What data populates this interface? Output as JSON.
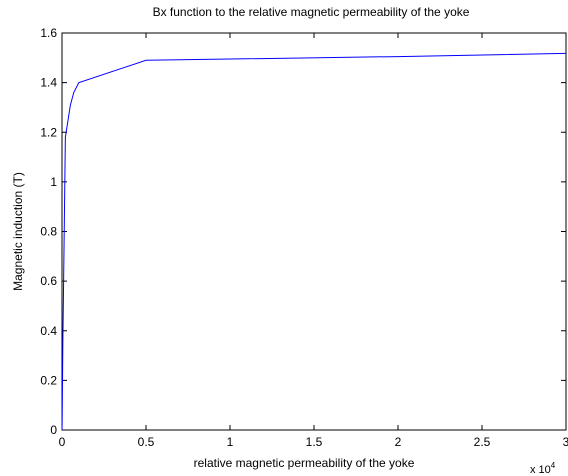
{
  "chart_data": {
    "type": "line",
    "title": "Bx function to the relative magnetic permeability of the yoke",
    "xlabel": "relative magnetic permeability of the yoke",
    "ylabel": "Magnetic induction (T)",
    "x_multiplier_label": "x 10",
    "x_multiplier_exponent": "4",
    "xlim": [
      0,
      30000
    ],
    "ylim": [
      0,
      1.6
    ],
    "x_ticks": [
      0,
      5000,
      10000,
      15000,
      20000,
      25000,
      30000
    ],
    "x_tick_labels": [
      "0",
      "0.5",
      "1",
      "1.5",
      "2",
      "2.5",
      "3"
    ],
    "y_ticks": [
      0,
      0.2,
      0.4,
      0.6,
      0.8,
      1.0,
      1.2,
      1.4,
      1.6
    ],
    "y_tick_labels": [
      "0",
      "0.2",
      "0.4",
      "0.6",
      "0.8",
      "1",
      "1.2",
      "1.4",
      "1.6"
    ],
    "grid": false,
    "series": [
      {
        "color": "#0000ff",
        "x": [
          1,
          10,
          50,
          100,
          200,
          500,
          700,
          1000,
          5000,
          10000,
          20000,
          30000
        ],
        "y": [
          0.0,
          0.04,
          0.35,
          0.62,
          1.18,
          1.31,
          1.36,
          1.4,
          1.49,
          1.495,
          1.505,
          1.518
        ]
      }
    ]
  }
}
